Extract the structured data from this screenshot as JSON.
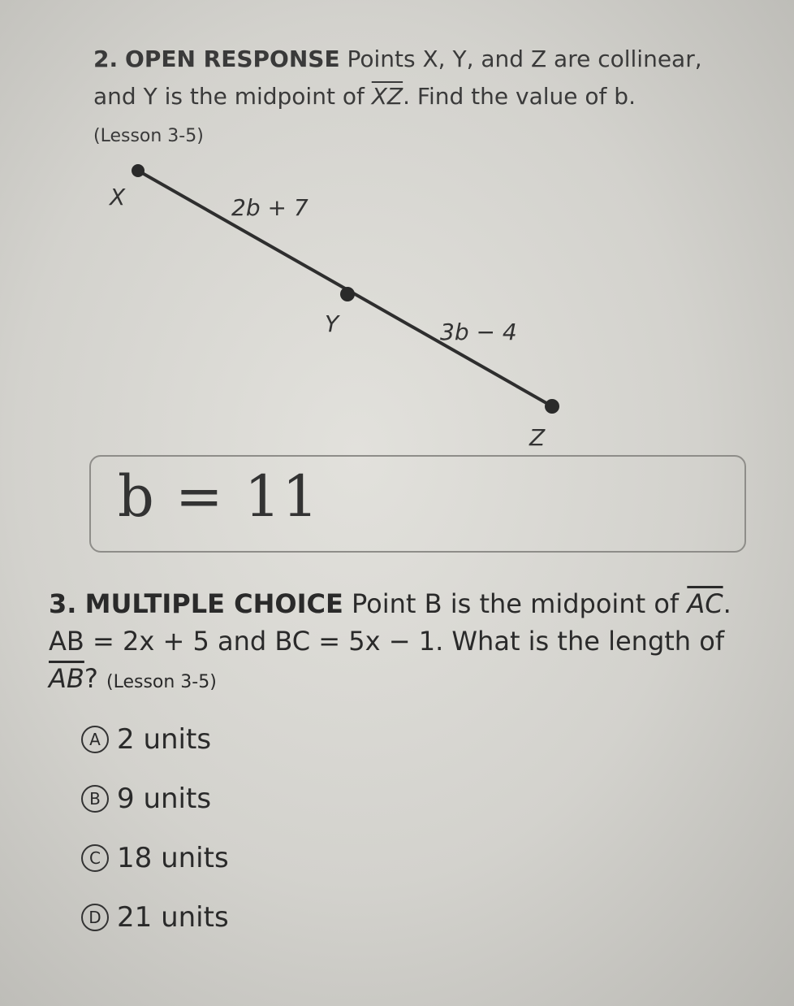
{
  "q2": {
    "number": "2.",
    "label": "OPEN RESPONSE",
    "text_before": "Points X, Y, and Z are collinear, and Y is the midpoint of",
    "segment": "XZ",
    "text_after": ". Find the value of b.",
    "lesson": "(Lesson 3-5)",
    "diagram": {
      "point_x": "X",
      "point_y": "Y",
      "point_z": "Z",
      "label_xy": "2b + 7",
      "label_yz": "3b − 4"
    },
    "answer": "b = 11"
  },
  "q3": {
    "number": "3.",
    "label": "MULTIPLE CHOICE",
    "text_before": "Point B is the midpoint of",
    "segment1": "AC",
    "text_middle": ". AB = 2x + 5 and BC = 5x − 1. What is the length of",
    "segment2": "AB",
    "text_after": "?",
    "lesson": "(Lesson 3-5)",
    "choices": [
      {
        "letter": "A",
        "text": "2 units"
      },
      {
        "letter": "B",
        "text": "9 units"
      },
      {
        "letter": "C",
        "text": "18 units"
      },
      {
        "letter": "D",
        "text": "21 units"
      }
    ]
  }
}
